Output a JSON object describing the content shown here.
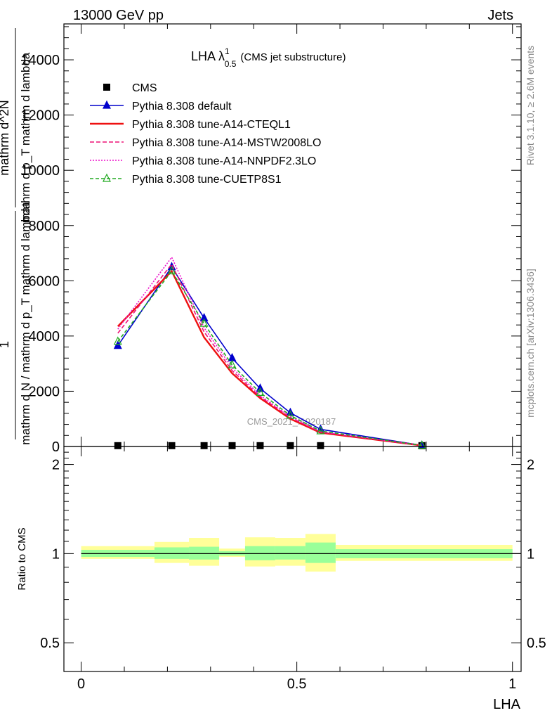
{
  "header": {
    "left": "13000 GeV pp",
    "right": "Jets"
  },
  "side_labels": {
    "rivet": "Rivet 3.1.10, ≥ 2.6M events",
    "mcplots": "mcplots.cern.ch [arXiv:1306.3436]"
  },
  "watermark": "CMS_2021_I1920187",
  "chart_data": {
    "type": "line",
    "title_main": "LHA λ",
    "title_sup": "1",
    "title_sub": "0.5",
    "title_note": "(CMS jet substructure)",
    "xlabel": "LHA",
    "ylabel": {
      "part1": "1",
      "part2": "mathrm d N / mathrm d p_T mathrm d lambda",
      "part3": "mathrm d^2N",
      "part4": "mathrm d p_T mathrm d lambda"
    },
    "xlim": [
      -0.04,
      1.02
    ],
    "ylim": [
      0,
      15300
    ],
    "x_ticks": [
      {
        "v": 0,
        "label": "0"
      },
      {
        "v": 0.5,
        "label": "0.5"
      },
      {
        "v": 1,
        "label": "1"
      }
    ],
    "y_ticks": [
      {
        "v": 0,
        "label": "0"
      },
      {
        "v": 2000,
        "label": "2000"
      },
      {
        "v": 4000,
        "label": "4000"
      },
      {
        "v": 6000,
        "label": "6000"
      },
      {
        "v": 8000,
        "label": "8000"
      },
      {
        "v": 10000,
        "label": "10000"
      },
      {
        "v": 12000,
        "label": "12000"
      },
      {
        "v": 14000,
        "label": "14000"
      }
    ],
    "x": [
      0.085,
      0.21,
      0.285,
      0.35,
      0.415,
      0.485,
      0.555,
      0.79
    ],
    "data": {
      "name": "CMS",
      "bins": [
        [
          0.0,
          0.17
        ],
        [
          0.17,
          0.25
        ],
        [
          0.25,
          0.32
        ],
        [
          0.32,
          0.38
        ],
        [
          0.38,
          0.45
        ],
        [
          0.45,
          0.52
        ],
        [
          0.52,
          0.59
        ],
        [
          0.59,
          1.0
        ]
      ],
      "values": [
        30,
        30,
        30,
        30,
        30,
        30,
        30,
        30
      ]
    },
    "series": [
      {
        "name": "Pythia 8.308 default",
        "color": "#0000cc",
        "dash": "",
        "marker": "triangle",
        "values": [
          3650,
          6500,
          4650,
          3200,
          2100,
          1220,
          620,
          40
        ]
      },
      {
        "name": "Pythia 8.308 tune-A14-CTEQL1",
        "color": "#ee1111",
        "dash": "",
        "marker": "none",
        "values": [
          4350,
          6350,
          3950,
          2650,
          1750,
          1000,
          500,
          35
        ]
      },
      {
        "name": "Pythia 8.308 tune-A14-MSTW2008LO",
        "color": "#ee1177",
        "dash": "6,3",
        "marker": "none",
        "values": [
          4100,
          6600,
          4150,
          2750,
          1800,
          1050,
          520,
          35
        ]
      },
      {
        "name": "Pythia 8.308 tune-A14-NNPDF2.3LO",
        "color": "#ee11cc",
        "dash": "2,2",
        "marker": "none",
        "values": [
          4250,
          6850,
          4300,
          2850,
          1850,
          1080,
          540,
          38
        ]
      },
      {
        "name": "Pythia 8.308 tune-CUETP8S1",
        "color": "#22aa22",
        "dash": "5,3",
        "marker": "triangle-open",
        "values": [
          3800,
          6350,
          4450,
          2950,
          1950,
          1120,
          560,
          38
        ]
      }
    ],
    "ratio": {
      "ylabel": "Ratio to CMS",
      "ylim": [
        0.4,
        2.3
      ],
      "y_ticks": [
        {
          "v": 0.5,
          "label": "0.5"
        },
        {
          "v": 1,
          "label": "1"
        },
        {
          "v": 2,
          "label": "2"
        }
      ],
      "bins": [
        [
          0.0,
          0.17
        ],
        [
          0.17,
          0.25
        ],
        [
          0.25,
          0.32
        ],
        [
          0.32,
          0.38
        ],
        [
          0.38,
          0.45
        ],
        [
          0.45,
          0.52
        ],
        [
          0.52,
          0.59
        ],
        [
          0.59,
          1.0
        ]
      ],
      "stat_band": [
        [
          0.975,
          1.03
        ],
        [
          0.96,
          1.05
        ],
        [
          0.955,
          1.055
        ],
        [
          0.985,
          1.02
        ],
        [
          0.95,
          1.06
        ],
        [
          0.955,
          1.06
        ],
        [
          0.93,
          1.09
        ],
        [
          0.965,
          1.035
        ]
      ],
      "total_band": [
        [
          0.96,
          1.06
        ],
        [
          0.93,
          1.095
        ],
        [
          0.91,
          1.13
        ],
        [
          0.975,
          1.04
        ],
        [
          0.905,
          1.135
        ],
        [
          0.91,
          1.13
        ],
        [
          0.87,
          1.165
        ],
        [
          0.945,
          1.07
        ]
      ]
    }
  }
}
